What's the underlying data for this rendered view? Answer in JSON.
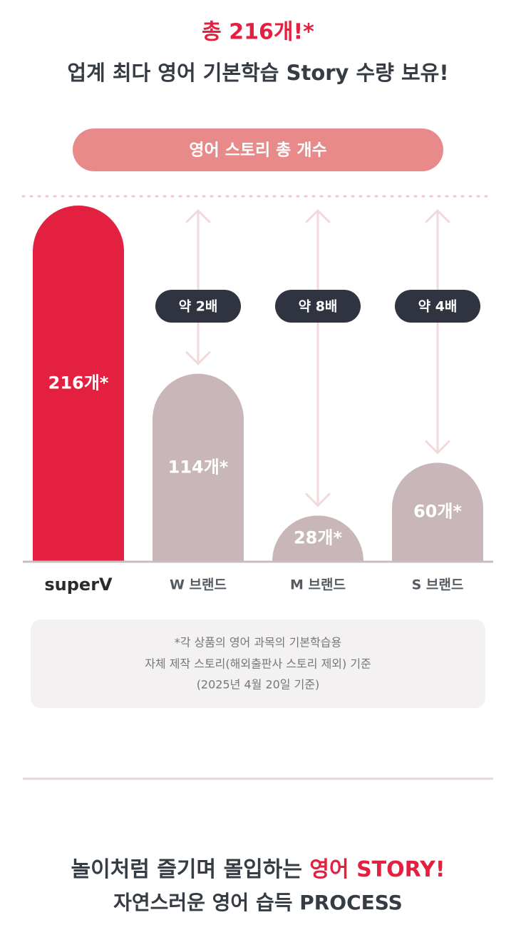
{
  "chart_data": {
    "type": "bar",
    "title": "총 216개!*",
    "subtitle": "업계 최다 영어 기본학습 Story 수량 보유!",
    "legend_pill": "영어 스토리 총 개수",
    "categories": [
      "superV",
      "W 브랜드",
      "M 브랜드",
      "S 브랜드"
    ],
    "values": [
      216,
      114,
      28,
      60
    ],
    "value_labels": [
      "216개*",
      "114개*",
      "28개*",
      "60개*"
    ],
    "colors": [
      "#e3203f",
      "#c9b6b9",
      "#c9b6b9",
      "#c9b6b9"
    ],
    "ratio_labels": [
      null,
      "약 2배",
      "약 8배",
      "약 4배"
    ],
    "ylim": [
      0,
      216
    ],
    "footnote": [
      "*각 상품의 영어 과목의 기본학습용",
      "자체 제작 스토리(해외출판사 스토리 제외) 기준",
      "(2025년 4월 20일 기준)"
    ]
  },
  "bottom_heading": {
    "line1": "놀이처럼 즐기며 몰입하는 ",
    "line1_accent": "영어 STORY!",
    "line2": "자연스러운 영어 습득 PROCESS"
  }
}
